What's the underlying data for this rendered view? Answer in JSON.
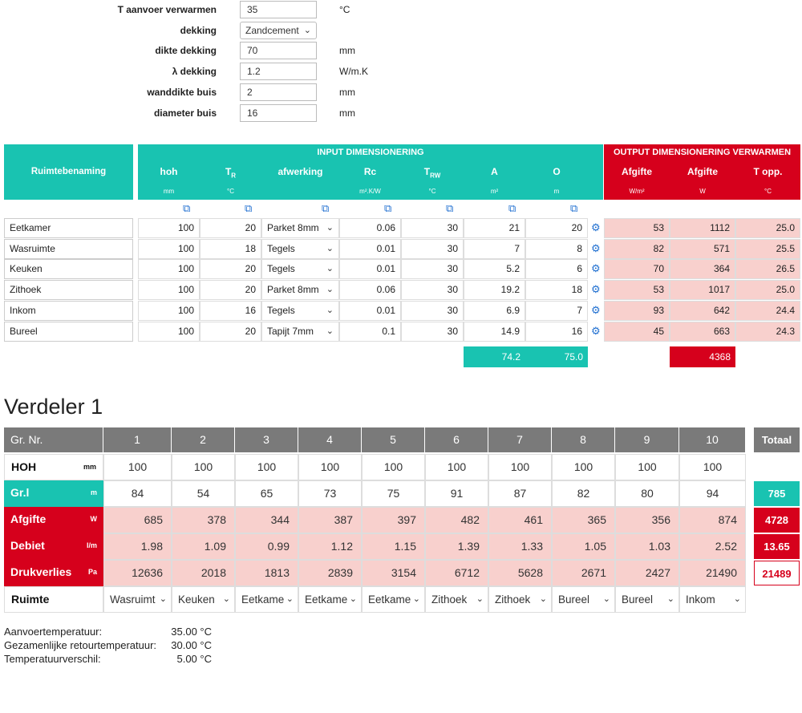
{
  "settings": [
    {
      "label": "T aanvoer verwarmen",
      "value": "35",
      "unit": "°C",
      "type": "input"
    },
    {
      "label": "dekking",
      "value": "Zandcement",
      "unit": "",
      "type": "select"
    },
    {
      "label": "dikte dekking",
      "value": "70",
      "unit": "mm",
      "type": "input"
    },
    {
      "label": "λ dekking",
      "value": "1.2",
      "unit": "W/m.K",
      "type": "input"
    },
    {
      "label": "wanddikte buis",
      "value": "2",
      "unit": "mm",
      "type": "input"
    },
    {
      "label": "diameter buis",
      "value": "16",
      "unit": "mm",
      "type": "input"
    }
  ],
  "table": {
    "room_header": "Ruimtebenaming",
    "input_header": "INPUT DIMENSIONERING",
    "output_header": "OUTPUT DIMENSIONERING VERWARMEN",
    "input_cols": [
      {
        "main": "hoh",
        "sub": "",
        "unit": "mm"
      },
      {
        "main": "T",
        "sub": "R",
        "unit": "°C"
      },
      {
        "main": "afwerking",
        "sub": "",
        "unit": ""
      },
      {
        "main": "Rc",
        "sub": "",
        "unit": "m².K/W"
      },
      {
        "main": "T",
        "sub": "RW",
        "unit": "°C"
      },
      {
        "main": "A",
        "sub": "",
        "unit": "m²"
      },
      {
        "main": "O",
        "sub": "",
        "unit": "m"
      }
    ],
    "output_cols": [
      {
        "main": "Afgifte",
        "unit": "W/m²"
      },
      {
        "main": "Afgifte",
        "unit": "W"
      },
      {
        "main": "T opp.",
        "unit": "°C"
      }
    ],
    "rows": [
      {
        "name": "Eetkamer",
        "hoh": "100",
        "tr": "20",
        "afwerking": "Parket 8mm",
        "rc": "0.06",
        "trw": "30",
        "a": "21",
        "o": "20",
        "afg_m2": "53",
        "afg_w": "1112",
        "topp": "25.0"
      },
      {
        "name": "Wasruimte",
        "hoh": "100",
        "tr": "18",
        "afwerking": "Tegels",
        "rc": "0.01",
        "trw": "30",
        "a": "7",
        "o": "8",
        "afg_m2": "82",
        "afg_w": "571",
        "topp": "25.5"
      },
      {
        "name": "Keuken",
        "hoh": "100",
        "tr": "20",
        "afwerking": "Tegels",
        "rc": "0.01",
        "trw": "30",
        "a": "5.2",
        "o": "6",
        "afg_m2": "70",
        "afg_w": "364",
        "topp": "26.5"
      },
      {
        "name": "Zithoek",
        "hoh": "100",
        "tr": "20",
        "afwerking": "Parket 8mm",
        "rc": "0.06",
        "trw": "30",
        "a": "19.2",
        "o": "18",
        "afg_m2": "53",
        "afg_w": "1017",
        "topp": "25.0"
      },
      {
        "name": "Inkom",
        "hoh": "100",
        "tr": "16",
        "afwerking": "Tegels",
        "rc": "0.01",
        "trw": "30",
        "a": "6.9",
        "o": "7",
        "afg_m2": "93",
        "afg_w": "642",
        "topp": "24.4"
      },
      {
        "name": "Bureel",
        "hoh": "100",
        "tr": "20",
        "afwerking": "Tapijt 7mm",
        "rc": "0.1",
        "trw": "30",
        "a": "14.9",
        "o": "16",
        "afg_m2": "45",
        "afg_w": "663",
        "topp": "24.3"
      }
    ],
    "totals": {
      "a": "74.2",
      "o": "75.0",
      "afg_w": "4368"
    }
  },
  "verdeler": {
    "title": "Verdeler 1",
    "head_label": "Gr. Nr.",
    "total_label": "Totaal",
    "groups": [
      "1",
      "2",
      "3",
      "4",
      "5",
      "6",
      "7",
      "8",
      "9",
      "10"
    ],
    "rows": {
      "hoh": {
        "label": "HOH",
        "unit": "mm",
        "values": [
          "100",
          "100",
          "100",
          "100",
          "100",
          "100",
          "100",
          "100",
          "100",
          "100"
        ],
        "total": ""
      },
      "grl": {
        "label": "Gr.l",
        "unit": "m",
        "values": [
          "84",
          "54",
          "65",
          "73",
          "75",
          "91",
          "87",
          "82",
          "80",
          "94"
        ],
        "total": "785"
      },
      "afgifte": {
        "label": "Afgifte",
        "unit": "W",
        "values": [
          "685",
          "378",
          "344",
          "387",
          "397",
          "482",
          "461",
          "365",
          "356",
          "874"
        ],
        "total": "4728"
      },
      "debiet": {
        "label": "Debiet",
        "unit": "l/m",
        "values": [
          "1.98",
          "1.09",
          "0.99",
          "1.12",
          "1.15",
          "1.39",
          "1.33",
          "1.05",
          "1.03",
          "2.52"
        ],
        "total": "13.65"
      },
      "drukverlies": {
        "label": "Drukverlies",
        "unit": "Pa",
        "values": [
          "12636",
          "2018",
          "1813",
          "2839",
          "3154",
          "6712",
          "5628",
          "2671",
          "2427",
          "21490"
        ],
        "total": "21489"
      },
      "ruimte": {
        "label": "Ruimte",
        "unit": "",
        "values": [
          "Wasruimt",
          "Keuken",
          "Eetkame",
          "Eetkame",
          "Eetkame",
          "Zithoek",
          "Zithoek",
          "Bureel",
          "Bureel",
          "Inkom"
        ],
        "total": ""
      }
    }
  },
  "summary": [
    {
      "label": "Aanvoertemperatuur:",
      "value": "35.00 °C"
    },
    {
      "label": "Gezamenlijke retourtemperatuur:",
      "value": "30.00 °C"
    },
    {
      "label": "Temperatuurverschil:",
      "value": "5.00 °C"
    }
  ],
  "colors": {
    "teal": "#19c3b1",
    "red": "#d6001c",
    "pink": "#f8d0cd",
    "grey_header": "#7a7a7a",
    "icon_blue": "#1f6fd0"
  }
}
